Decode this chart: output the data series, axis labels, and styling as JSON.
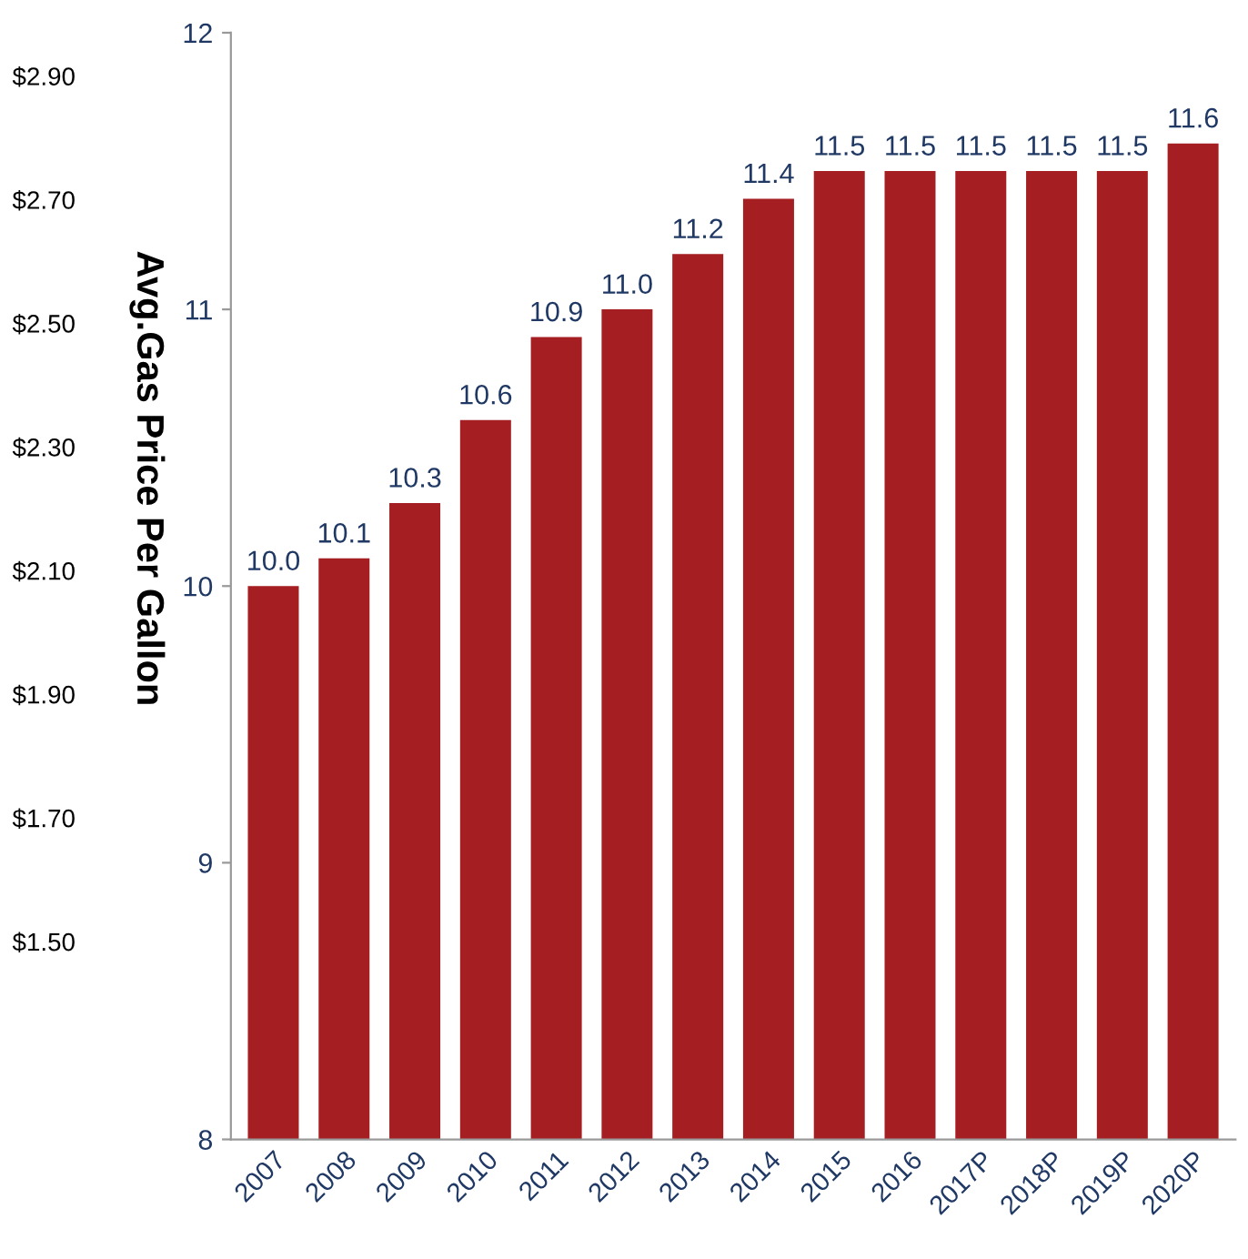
{
  "chart_data": {
    "type": "bar",
    "ylabel": "Avg.Gas Price Per Gallon",
    "categories": [
      "2007",
      "2008",
      "2009",
      "2010",
      "2011",
      "2012",
      "2013",
      "2014",
      "2015",
      "2016",
      "2017P",
      "2018P",
      "2019P",
      "2020P"
    ],
    "values": [
      10.0,
      10.1,
      10.3,
      10.6,
      10.9,
      11.0,
      11.2,
      11.4,
      11.5,
      11.5,
      11.5,
      11.5,
      11.5,
      11.6
    ],
    "color": "#a51e22",
    "ylim": [
      8,
      12
    ],
    "yticks": [
      8,
      9,
      10,
      11,
      12
    ],
    "y2lim": [
      1.18,
      2.97
    ],
    "y2ticks": [
      {
        "value": 1.5,
        "label": "$1.50"
      },
      {
        "value": 1.7,
        "label": "$1.70"
      },
      {
        "value": 1.9,
        "label": "$1.90"
      },
      {
        "value": 2.1,
        "label": "$2.10"
      },
      {
        "value": 2.3,
        "label": "$2.30"
      },
      {
        "value": 2.5,
        "label": "$2.50"
      },
      {
        "value": 2.7,
        "label": "$2.70"
      },
      {
        "value": 2.9,
        "label": "$2.90"
      }
    ],
    "value_labels": [
      "10.0",
      "10.1",
      "10.3",
      "10.6",
      "10.9",
      "11.0",
      "11.2",
      "11.4",
      "11.5",
      "11.5",
      "11.5",
      "11.5",
      "11.5",
      "11.6"
    ],
    "grid": false,
    "legend": false
  }
}
